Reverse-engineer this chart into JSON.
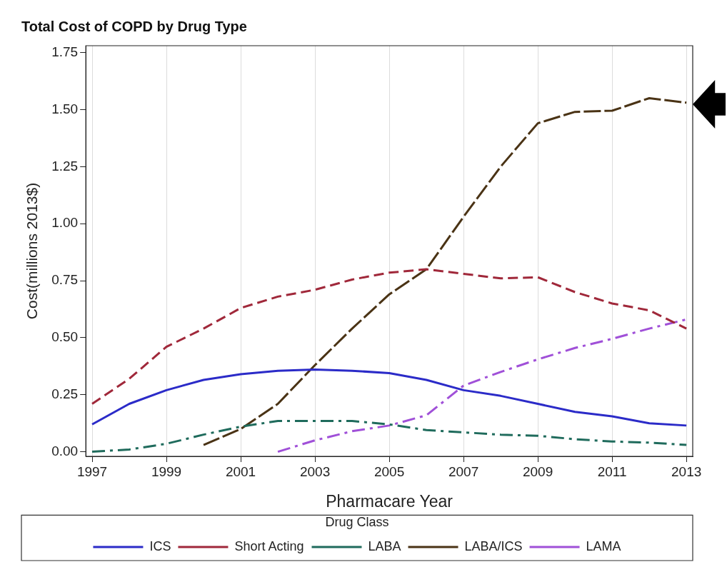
{
  "chart_data": {
    "type": "line",
    "title": "Total Cost of COPD by Drug Type",
    "xlabel": "Pharmacare Year",
    "ylabel": "Cost(millions 2013$)",
    "legend_title": "Drug Class",
    "legend": "bottom",
    "grid": "x",
    "marker": "none",
    "x": [
      1997,
      1998,
      1999,
      2000,
      2001,
      2002,
      2003,
      2004,
      2005,
      2006,
      2007,
      2008,
      2009,
      2010,
      2011,
      2012,
      2013
    ],
    "xlim": [
      1996.83,
      2013.17
    ],
    "xticks": [
      1997,
      1999,
      2001,
      2003,
      2005,
      2007,
      2009,
      2011,
      2013
    ],
    "ylim": [
      -0.02,
      1.78
    ],
    "yticks": [
      {
        "value": 0,
        "label": "0.00"
      },
      {
        "value": 0.25,
        "label": "0.25"
      },
      {
        "value": 0.5,
        "label": "0.50"
      },
      {
        "value": 0.75,
        "label": "0.75"
      },
      {
        "value": 1,
        "label": "1.00"
      },
      {
        "value": 1.25,
        "label": "1.25"
      },
      {
        "value": 1.5,
        "label": "1.50"
      },
      {
        "value": 1.75,
        "label": "1.75"
      }
    ],
    "series": [
      {
        "name": "ICS",
        "color": "#2b2bc8",
        "line_style": "solid",
        "values": [
          0.12,
          0.21,
          0.27,
          0.315,
          0.34,
          0.355,
          0.36,
          0.355,
          0.345,
          0.315,
          0.27,
          0.245,
          0.21,
          0.175,
          0.155,
          0.125,
          0.115
        ]
      },
      {
        "name": "Short Acting",
        "color": "#a0283a",
        "line_style": "dashed",
        "values": [
          0.21,
          0.32,
          0.46,
          0.54,
          0.63,
          0.68,
          0.71,
          0.755,
          0.785,
          0.8,
          0.78,
          0.76,
          0.765,
          0.7,
          0.65,
          0.62,
          0.54
        ]
      },
      {
        "name": "LABA",
        "color": "#1f6b5c",
        "line_style": "dashdot",
        "values": [
          0.0,
          0.01,
          0.035,
          0.075,
          0.11,
          0.135,
          0.135,
          0.135,
          0.12,
          0.095,
          0.085,
          0.075,
          0.07,
          0.055,
          0.045,
          0.04,
          0.03
        ]
      },
      {
        "name": "LABA/ICS",
        "color": "#4a3315",
        "line_style": "longdash",
        "values": [
          null,
          null,
          null,
          0.03,
          0.1,
          0.21,
          0.38,
          0.54,
          0.69,
          0.8,
          1.03,
          1.25,
          1.44,
          1.49,
          1.495,
          1.55,
          1.53
        ]
      },
      {
        "name": "LAMA",
        "color": "#a050d8",
        "line_style": "dashdot",
        "values": [
          null,
          null,
          null,
          null,
          null,
          0.0,
          0.05,
          0.09,
          0.115,
          0.16,
          0.29,
          0.35,
          0.405,
          0.455,
          0.495,
          0.54,
          0.58
        ]
      }
    ]
  }
}
